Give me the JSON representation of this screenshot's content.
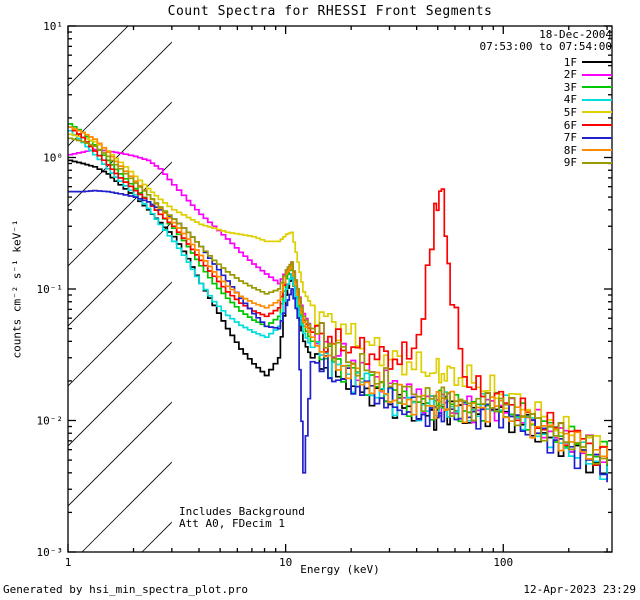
{
  "title": "Count Spectra for RHESSI Front Segments",
  "header_right": {
    "date": "18-Dec-2004",
    "time_range": "07:53:00 to 07:54:00"
  },
  "annotations": {
    "line1": "Includes Background",
    "line2": "Att A0, FDecim 1"
  },
  "footer": {
    "left": "Generated by hsi_min_spectra_plot.pro",
    "right": "12-Apr-2023 23:29"
  },
  "axes": {
    "xlabel": "Energy (keV)",
    "ylabel": "counts cm⁻² s⁻¹ keV⁻¹",
    "x_tick_values": [
      1,
      10,
      100
    ],
    "x_tick_labels": [
      "1",
      "10",
      "100"
    ],
    "y_tick_values": [
      10,
      1,
      0.1,
      0.01,
      0.001
    ],
    "y_tick_labels": [
      "10¹",
      "10⁰",
      "10⁻¹",
      "10⁻²",
      "10⁻³"
    ]
  },
  "chart_data": {
    "type": "line",
    "title": "Count Spectra for RHESSI Front Segments",
    "xlabel": "Energy (keV)",
    "ylabel": "counts cm^-2 s^-1 keV^-1",
    "x_scale": "log",
    "y_scale": "log",
    "xlim": [
      1,
      316
    ],
    "ylim": [
      0.001,
      10
    ],
    "grid": false,
    "legend_position": "top-right",
    "hatched_region_kev": [
      1,
      3
    ],
    "noise_jitter_log10": 0.12,
    "energies_kev": [
      1.0,
      1.15,
      1.3,
      1.5,
      1.7,
      2.0,
      2.3,
      2.6,
      3.0,
      3.5,
      4.0,
      4.6,
      5.3,
      6.1,
      7.0,
      8.0,
      9.2,
      10.0,
      10.6,
      11.3,
      12.0,
      13.0,
      15.0,
      17.0,
      20.0,
      23.0,
      27.0,
      31.0,
      36.0,
      42.0,
      48.0,
      52.0,
      57.0,
      65.0,
      75.0,
      87.0,
      100.0,
      120.0,
      140.0,
      170.0,
      200.0,
      240.0,
      300.0
    ],
    "series": [
      {
        "name": "1F",
        "color": "#000000",
        "values": [
          0.95,
          0.9,
          0.85,
          0.75,
          0.62,
          0.5,
          0.4,
          0.32,
          0.25,
          0.17,
          0.11,
          0.075,
          0.05,
          0.035,
          0.027,
          0.022,
          0.03,
          0.09,
          0.13,
          0.07,
          0.04,
          0.03,
          0.026,
          0.022,
          0.019,
          0.017,
          0.015,
          0.013,
          0.012,
          0.011,
          0.011,
          0.012,
          0.012,
          0.011,
          0.011,
          0.012,
          0.011,
          0.0095,
          0.008,
          0.007,
          0.006,
          0.005,
          0.004
        ]
      },
      {
        "name": "2F",
        "color": "#ff00ff",
        "values": [
          1.05,
          1.1,
          1.15,
          1.12,
          1.08,
          1.02,
          0.95,
          0.82,
          0.62,
          0.47,
          0.37,
          0.3,
          0.24,
          0.19,
          0.155,
          0.13,
          0.11,
          0.14,
          0.16,
          0.1,
          0.065,
          0.05,
          0.04,
          0.033,
          0.027,
          0.024,
          0.021,
          0.018,
          0.016,
          0.015,
          0.014,
          0.014,
          0.013,
          0.013,
          0.012,
          0.013,
          0.012,
          0.011,
          0.0095,
          0.008,
          0.007,
          0.006,
          0.005
        ]
      },
      {
        "name": "3F",
        "color": "#00c800",
        "values": [
          1.8,
          1.55,
          1.25,
          0.95,
          0.75,
          0.58,
          0.46,
          0.37,
          0.29,
          0.21,
          0.15,
          0.11,
          0.085,
          0.068,
          0.058,
          0.052,
          0.062,
          0.12,
          0.15,
          0.085,
          0.052,
          0.04,
          0.032,
          0.027,
          0.023,
          0.02,
          0.017,
          0.015,
          0.014,
          0.013,
          0.013,
          0.014,
          0.013,
          0.012,
          0.012,
          0.013,
          0.012,
          0.0105,
          0.009,
          0.008,
          0.007,
          0.006,
          0.005
        ]
      },
      {
        "name": "4F",
        "color": "#00dddd",
        "values": [
          1.6,
          1.3,
          1.05,
          0.82,
          0.66,
          0.52,
          0.41,
          0.31,
          0.23,
          0.16,
          0.11,
          0.08,
          0.063,
          0.053,
          0.047,
          0.043,
          0.052,
          0.1,
          0.13,
          0.072,
          0.046,
          0.036,
          0.029,
          0.025,
          0.021,
          0.019,
          0.016,
          0.014,
          0.013,
          0.0125,
          0.012,
          0.013,
          0.013,
          0.012,
          0.012,
          0.013,
          0.012,
          0.01,
          0.0085,
          0.007,
          0.006,
          0.005,
          0.0042
        ]
      },
      {
        "name": "5F",
        "color": "#ddd000",
        "values": [
          1.5,
          1.42,
          1.32,
          1.12,
          0.92,
          0.72,
          0.58,
          0.48,
          0.4,
          0.35,
          0.31,
          0.29,
          0.27,
          0.26,
          0.25,
          0.23,
          0.23,
          0.26,
          0.27,
          0.16,
          0.095,
          0.075,
          0.06,
          0.052,
          0.044,
          0.038,
          0.033,
          0.029,
          0.027,
          0.025,
          0.023,
          0.023,
          0.022,
          0.021,
          0.019,
          0.017,
          0.015,
          0.013,
          0.011,
          0.0095,
          0.008,
          0.007,
          0.006
        ]
      },
      {
        "name": "6F",
        "color": "#ff0000",
        "values": [
          1.7,
          1.42,
          1.12,
          0.88,
          0.7,
          0.56,
          0.46,
          0.37,
          0.3,
          0.22,
          0.165,
          0.125,
          0.095,
          0.078,
          0.068,
          0.062,
          0.072,
          0.13,
          0.16,
          0.095,
          0.058,
          0.047,
          0.042,
          0.039,
          0.036,
          0.033,
          0.031,
          0.029,
          0.031,
          0.06,
          0.45,
          0.5,
          0.09,
          0.022,
          0.017,
          0.015,
          0.014,
          0.012,
          0.01,
          0.009,
          0.008,
          0.0065,
          0.005
        ]
      },
      {
        "name": "7F",
        "color": "#2020cc",
        "values": [
          0.55,
          0.55,
          0.56,
          0.55,
          0.53,
          0.5,
          0.46,
          0.4,
          0.34,
          0.27,
          0.21,
          0.155,
          0.115,
          0.085,
          0.065,
          0.052,
          0.05,
          0.075,
          0.1,
          0.06,
          0.004,
          0.028,
          0.024,
          0.021,
          0.019,
          0.017,
          0.015,
          0.013,
          0.012,
          0.011,
          0.011,
          0.012,
          0.012,
          0.011,
          0.011,
          0.012,
          0.011,
          0.0095,
          0.008,
          0.007,
          0.006,
          0.005,
          0.004
        ]
      },
      {
        "name": "8F",
        "color": "#ff8c00",
        "values": [
          1.7,
          1.55,
          1.38,
          1.1,
          0.86,
          0.66,
          0.52,
          0.41,
          0.32,
          0.24,
          0.18,
          0.135,
          0.105,
          0.088,
          0.078,
          0.072,
          0.082,
          0.13,
          0.15,
          0.09,
          0.056,
          0.043,
          0.033,
          0.028,
          0.023,
          0.02,
          0.017,
          0.015,
          0.014,
          0.0135,
          0.013,
          0.014,
          0.0135,
          0.0125,
          0.012,
          0.013,
          0.012,
          0.0105,
          0.009,
          0.008,
          0.007,
          0.006,
          0.005
        ]
      },
      {
        "name": "9F",
        "color": "#999900",
        "values": [
          1.4,
          1.32,
          1.22,
          1.02,
          0.82,
          0.64,
          0.52,
          0.42,
          0.34,
          0.27,
          0.21,
          0.165,
          0.135,
          0.115,
          0.102,
          0.092,
          0.1,
          0.14,
          0.16,
          0.1,
          0.062,
          0.05,
          0.04,
          0.034,
          0.028,
          0.024,
          0.021,
          0.018,
          0.016,
          0.015,
          0.014,
          0.015,
          0.014,
          0.013,
          0.013,
          0.014,
          0.013,
          0.011,
          0.0095,
          0.008,
          0.007,
          0.006,
          0.005
        ]
      }
    ]
  }
}
